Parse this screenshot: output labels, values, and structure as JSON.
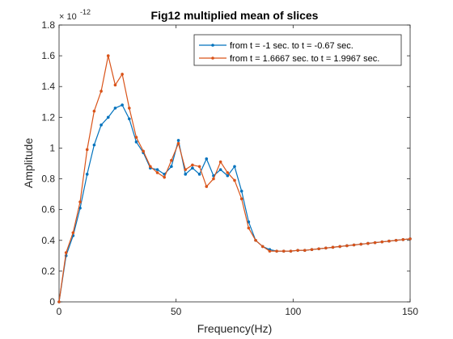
{
  "chart_data": {
    "type": "line",
    "title": "Fig12 multiplied mean of slices",
    "xlabel": "Frequency(Hz)",
    "ylabel": "Amplitude",
    "y_exponent_label": "× 10",
    "y_exponent_power": "-12",
    "xlim": [
      0,
      150
    ],
    "ylim": [
      0,
      1.8
    ],
    "x_ticks": [
      0,
      50,
      100,
      150
    ],
    "x_tick_labels": [
      "0",
      "50",
      "100",
      "150"
    ],
    "y_ticks": [
      0,
      0.2,
      0.4,
      0.6,
      0.8,
      1.0,
      1.2,
      1.4,
      1.6,
      1.8
    ],
    "y_tick_labels": [
      "0",
      "0.2",
      "0.4",
      "0.6",
      "0.8",
      "1",
      "1.2",
      "1.4",
      "1.6",
      "1.8"
    ],
    "grid": false,
    "legend_position": "top-right",
    "x": [
      0,
      3,
      6,
      9,
      12,
      15,
      18,
      21,
      24,
      27,
      30,
      33,
      36,
      39,
      42,
      45,
      48,
      51,
      54,
      57,
      60,
      63,
      66,
      69,
      72,
      75,
      78,
      81,
      84,
      87,
      90,
      93,
      96,
      99,
      102,
      105,
      108,
      111,
      114,
      117,
      120,
      123,
      126,
      129,
      132,
      135,
      138,
      141,
      144,
      147,
      150
    ],
    "series": [
      {
        "name": "from t = -1 sec. to t = -0.67 sec.",
        "color": "#0072BD",
        "values": [
          0,
          0.3,
          0.43,
          0.61,
          0.83,
          1.02,
          1.15,
          1.2,
          1.26,
          1.28,
          1.19,
          1.04,
          0.97,
          0.87,
          0.86,
          0.83,
          0.88,
          1.05,
          0.83,
          0.87,
          0.83,
          0.93,
          0.82,
          0.86,
          0.82,
          0.88,
          0.72,
          0.52,
          0.4,
          0.36,
          0.34,
          0.33,
          0.33,
          0.33,
          0.335,
          0.335,
          0.34,
          0.345,
          0.35,
          0.355,
          0.36,
          0.365,
          0.37,
          0.375,
          0.38,
          0.385,
          0.39,
          0.395,
          0.4,
          0.405,
          0.41
        ]
      },
      {
        "name": "from t = 1.6667 sec. to t = 1.9967 sec.",
        "color": "#D95319",
        "values": [
          0,
          0.32,
          0.45,
          0.65,
          0.99,
          1.24,
          1.37,
          1.6,
          1.41,
          1.48,
          1.26,
          1.07,
          0.98,
          0.88,
          0.84,
          0.81,
          0.92,
          1.03,
          0.86,
          0.89,
          0.88,
          0.75,
          0.8,
          0.91,
          0.84,
          0.79,
          0.67,
          0.48,
          0.4,
          0.36,
          0.33,
          0.33,
          0.33,
          0.33,
          0.335,
          0.335,
          0.34,
          0.345,
          0.35,
          0.355,
          0.36,
          0.365,
          0.37,
          0.375,
          0.38,
          0.385,
          0.39,
          0.395,
          0.4,
          0.405,
          0.41
        ]
      }
    ]
  }
}
